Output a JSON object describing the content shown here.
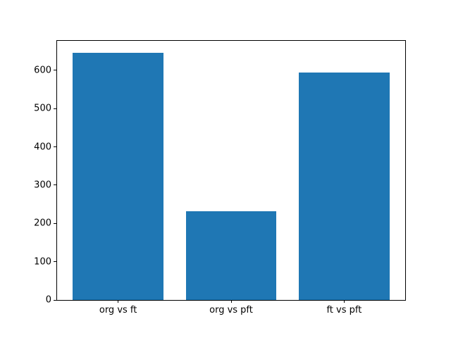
{
  "chart_data": {
    "type": "bar",
    "title": "",
    "xlabel": "",
    "ylabel": "",
    "categories": [
      "org vs ft",
      "org vs pft",
      "ft vs pft"
    ],
    "values": [
      645,
      232,
      595
    ],
    "yticks": [
      0,
      100,
      200,
      300,
      400,
      500,
      600
    ],
    "ylim": [
      0,
      677
    ],
    "xlim": [
      -0.54,
      2.54
    ],
    "bar_width_fraction": 0.8,
    "bar_color": "#1f77b4",
    "axis_color": "#000000",
    "background_color": "#ffffff",
    "grid": false,
    "legend": "none"
  }
}
